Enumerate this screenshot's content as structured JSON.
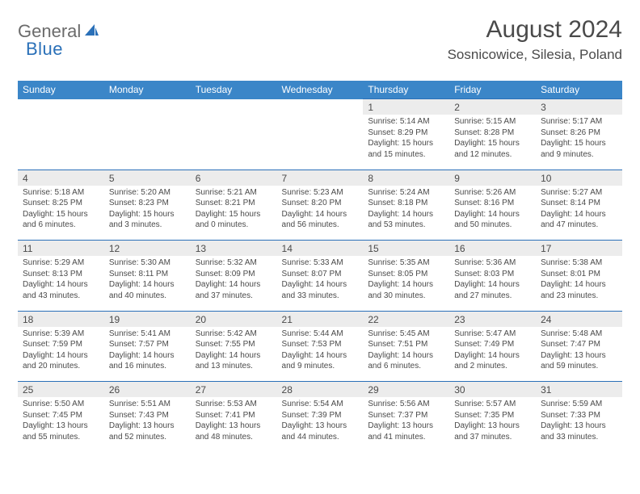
{
  "logo": {
    "text1": "General",
    "text2": "Blue"
  },
  "title": "August 2024",
  "location": "Sosnicowice, Silesia, Poland",
  "colors": {
    "header_bg": "#3b86c8",
    "header_text": "#ffffff",
    "daynum_bg": "#ececec",
    "cell_bg": "#ffffff",
    "border": "#2a70b8",
    "text": "#4a4a4a",
    "logo_gray": "#6b6b6b",
    "logo_blue": "#2a70b8"
  },
  "weekdays": [
    "Sunday",
    "Monday",
    "Tuesday",
    "Wednesday",
    "Thursday",
    "Friday",
    "Saturday"
  ],
  "weeks": [
    {
      "days": [
        null,
        null,
        null,
        null,
        {
          "n": "1",
          "sr": "5:14 AM",
          "ss": "8:29 PM",
          "dh": "15",
          "dm": "15"
        },
        {
          "n": "2",
          "sr": "5:15 AM",
          "ss": "8:28 PM",
          "dh": "15",
          "dm": "12"
        },
        {
          "n": "3",
          "sr": "5:17 AM",
          "ss": "8:26 PM",
          "dh": "15",
          "dm": "9"
        }
      ]
    },
    {
      "days": [
        {
          "n": "4",
          "sr": "5:18 AM",
          "ss": "8:25 PM",
          "dh": "15",
          "dm": "6"
        },
        {
          "n": "5",
          "sr": "5:20 AM",
          "ss": "8:23 PM",
          "dh": "15",
          "dm": "3"
        },
        {
          "n": "6",
          "sr": "5:21 AM",
          "ss": "8:21 PM",
          "dh": "15",
          "dm": "0"
        },
        {
          "n": "7",
          "sr": "5:23 AM",
          "ss": "8:20 PM",
          "dh": "14",
          "dm": "56"
        },
        {
          "n": "8",
          "sr": "5:24 AM",
          "ss": "8:18 PM",
          "dh": "14",
          "dm": "53"
        },
        {
          "n": "9",
          "sr": "5:26 AM",
          "ss": "8:16 PM",
          "dh": "14",
          "dm": "50"
        },
        {
          "n": "10",
          "sr": "5:27 AM",
          "ss": "8:14 PM",
          "dh": "14",
          "dm": "47"
        }
      ]
    },
    {
      "days": [
        {
          "n": "11",
          "sr": "5:29 AM",
          "ss": "8:13 PM",
          "dh": "14",
          "dm": "43"
        },
        {
          "n": "12",
          "sr": "5:30 AM",
          "ss": "8:11 PM",
          "dh": "14",
          "dm": "40"
        },
        {
          "n": "13",
          "sr": "5:32 AM",
          "ss": "8:09 PM",
          "dh": "14",
          "dm": "37"
        },
        {
          "n": "14",
          "sr": "5:33 AM",
          "ss": "8:07 PM",
          "dh": "14",
          "dm": "33"
        },
        {
          "n": "15",
          "sr": "5:35 AM",
          "ss": "8:05 PM",
          "dh": "14",
          "dm": "30"
        },
        {
          "n": "16",
          "sr": "5:36 AM",
          "ss": "8:03 PM",
          "dh": "14",
          "dm": "27"
        },
        {
          "n": "17",
          "sr": "5:38 AM",
          "ss": "8:01 PM",
          "dh": "14",
          "dm": "23"
        }
      ]
    },
    {
      "days": [
        {
          "n": "18",
          "sr": "5:39 AM",
          "ss": "7:59 PM",
          "dh": "14",
          "dm": "20"
        },
        {
          "n": "19",
          "sr": "5:41 AM",
          "ss": "7:57 PM",
          "dh": "14",
          "dm": "16"
        },
        {
          "n": "20",
          "sr": "5:42 AM",
          "ss": "7:55 PM",
          "dh": "14",
          "dm": "13"
        },
        {
          "n": "21",
          "sr": "5:44 AM",
          "ss": "7:53 PM",
          "dh": "14",
          "dm": "9"
        },
        {
          "n": "22",
          "sr": "5:45 AM",
          "ss": "7:51 PM",
          "dh": "14",
          "dm": "6"
        },
        {
          "n": "23",
          "sr": "5:47 AM",
          "ss": "7:49 PM",
          "dh": "14",
          "dm": "2"
        },
        {
          "n": "24",
          "sr": "5:48 AM",
          "ss": "7:47 PM",
          "dh": "13",
          "dm": "59"
        }
      ]
    },
    {
      "days": [
        {
          "n": "25",
          "sr": "5:50 AM",
          "ss": "7:45 PM",
          "dh": "13",
          "dm": "55"
        },
        {
          "n": "26",
          "sr": "5:51 AM",
          "ss": "7:43 PM",
          "dh": "13",
          "dm": "52"
        },
        {
          "n": "27",
          "sr": "5:53 AM",
          "ss": "7:41 PM",
          "dh": "13",
          "dm": "48"
        },
        {
          "n": "28",
          "sr": "5:54 AM",
          "ss": "7:39 PM",
          "dh": "13",
          "dm": "44"
        },
        {
          "n": "29",
          "sr": "5:56 AM",
          "ss": "7:37 PM",
          "dh": "13",
          "dm": "41"
        },
        {
          "n": "30",
          "sr": "5:57 AM",
          "ss": "7:35 PM",
          "dh": "13",
          "dm": "37"
        },
        {
          "n": "31",
          "sr": "5:59 AM",
          "ss": "7:33 PM",
          "dh": "13",
          "dm": "33"
        }
      ]
    }
  ]
}
